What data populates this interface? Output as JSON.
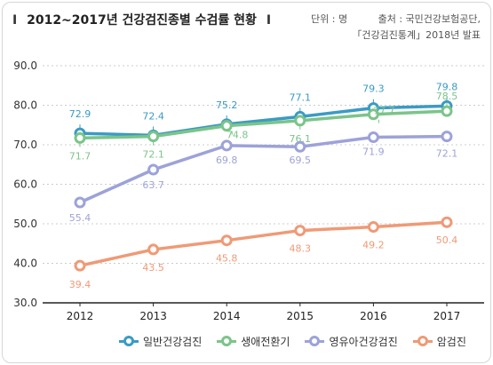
{
  "title": {
    "bar_left": "I",
    "text": "2012~2017년 건강검진종별 수검률 현황",
    "bar_right": "I"
  },
  "unit": "단위 : 명",
  "source": {
    "line1": "출처 : 국민건강보험공단,",
    "line2": "「건강검진통계」2018년 발표"
  },
  "colors": {
    "general": "#3a9bc4",
    "lifecycle": "#7cc48a",
    "infant": "#9da2d8",
    "cancer": "#ef9a76",
    "grid": "#cccccc",
    "axis": "#222222"
  },
  "chart_data": {
    "type": "line",
    "title": "2012~2017년 건강검진종별 수검률 현황",
    "categories": [
      "2012",
      "2013",
      "2014",
      "2015",
      "2016",
      "2017"
    ],
    "ylim": [
      30.0,
      90.0
    ],
    "yticks": [
      "30.0",
      "40.0",
      "50.0",
      "60.0",
      "70.0",
      "80.0",
      "90.0"
    ],
    "grid": true,
    "legend_position": "bottom",
    "series": [
      {
        "name": "일반건강검진",
        "key": "general",
        "values": [
          72.9,
          72.4,
          75.2,
          77.1,
          79.3,
          79.8
        ]
      },
      {
        "name": "생애전환기",
        "key": "lifecycle",
        "values": [
          71.7,
          72.1,
          74.8,
          76.1,
          77.7,
          78.5
        ]
      },
      {
        "name": "영유아건강검진",
        "key": "infant",
        "values": [
          55.4,
          63.7,
          69.8,
          69.5,
          71.9,
          72.1
        ]
      },
      {
        "name": "암검진",
        "key": "cancer",
        "values": [
          39.4,
          43.5,
          45.8,
          48.3,
          49.2,
          50.4
        ]
      }
    ]
  }
}
